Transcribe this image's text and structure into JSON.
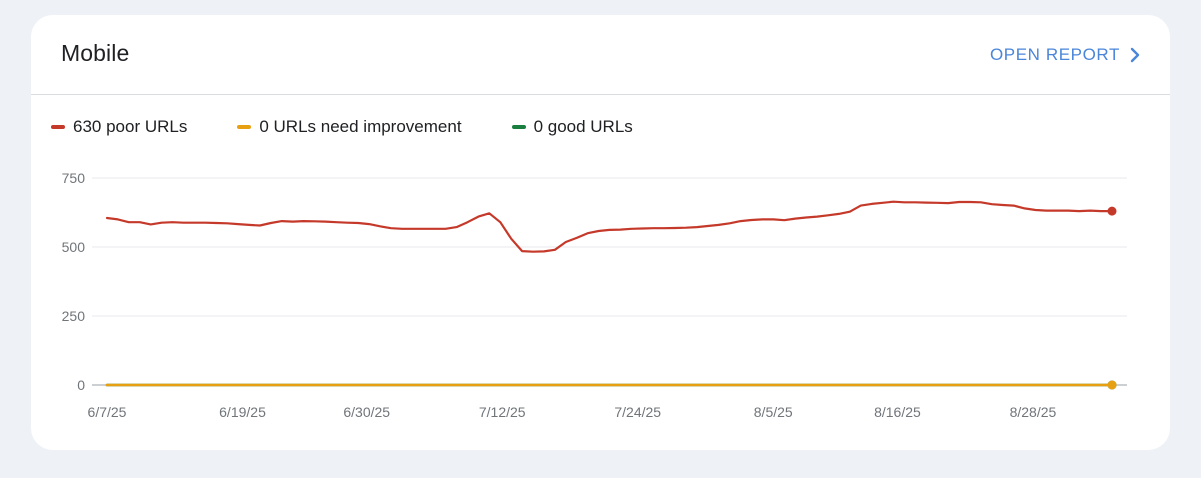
{
  "card": {
    "title": "Mobile",
    "open_report_label": "OPEN REPORT",
    "open_report_icon": "chevron-right-icon"
  },
  "legend": [
    {
      "label": "630 poor URLs",
      "color": "#c5392a"
    },
    {
      "label": "0 URLs need improvement",
      "color": "#e8a013"
    },
    {
      "label": "0 good URLs",
      "color": "#1a7f3e"
    }
  ],
  "chart_data": {
    "type": "line",
    "x_start": "2025-06-07",
    "x_end": "2025-09-04",
    "x_ticks": [
      {
        "date": "2025-06-07",
        "label": "6/7/25"
      },
      {
        "date": "2025-06-19",
        "label": "6/19/25"
      },
      {
        "date": "2025-06-30",
        "label": "6/30/25"
      },
      {
        "date": "2025-07-12",
        "label": "7/12/25"
      },
      {
        "date": "2025-07-24",
        "label": "7/24/25"
      },
      {
        "date": "2025-08-05",
        "label": "8/5/25"
      },
      {
        "date": "2025-08-16",
        "label": "8/16/25"
      },
      {
        "date": "2025-08-28",
        "label": "8/28/25"
      }
    ],
    "y_ticks": [
      0,
      250,
      500,
      750
    ],
    "ylim": [
      0,
      750
    ],
    "grid": true,
    "series": [
      {
        "name": "poor URLs",
        "color": "#c5392a",
        "values": [
          605,
          600,
          590,
          590,
          582,
          588,
          590,
          588,
          588,
          588,
          587,
          586,
          583,
          580,
          578,
          587,
          594,
          592,
          594,
          593,
          592,
          590,
          588,
          587,
          583,
          575,
          568,
          566,
          566,
          566,
          566,
          566,
          572,
          590,
          610,
          622,
          590,
          530,
          485,
          483,
          484,
          490,
          518,
          533,
          550,
          558,
          562,
          563,
          566,
          567,
          568,
          568,
          569,
          570,
          572,
          576,
          580,
          586,
          594,
          598,
          600,
          600,
          597,
          603,
          607,
          610,
          615,
          620,
          628,
          650,
          656,
          660,
          664,
          662,
          662,
          661,
          660,
          659,
          663,
          663,
          662,
          655,
          652,
          650,
          640,
          634,
          632,
          632,
          632,
          630,
          632,
          630,
          630
        ]
      },
      {
        "name": "URLs need improvement",
        "color": "#e8a013",
        "values": [
          0,
          0
        ]
      },
      {
        "name": "good URLs",
        "color": "#1a7f3e",
        "values": [
          0,
          0
        ]
      }
    ]
  }
}
